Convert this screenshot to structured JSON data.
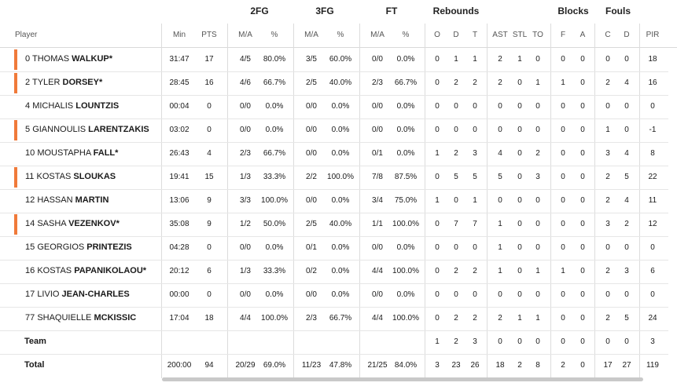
{
  "groups": {
    "fg2": "2FG",
    "fg3": "3FG",
    "ft": "FT",
    "rebounds": "Rebounds",
    "blocks": "Blocks",
    "fouls": "Fouls"
  },
  "columns": {
    "player": "Player",
    "min": "Min",
    "pts": "PTS",
    "fg2_ma": "M/A",
    "fg2_pct": "%",
    "fg3_ma": "M/A",
    "fg3_pct": "%",
    "ft_ma": "M/A",
    "ft_pct": "%",
    "reb_o": "O",
    "reb_d": "D",
    "reb_t": "T",
    "ast": "AST",
    "stl": "STL",
    "to": "TO",
    "blk_f": "F",
    "blk_a": "A",
    "foul_c": "C",
    "foul_d": "D",
    "pir": "PIR"
  },
  "players": [
    {
      "starter": true,
      "num": "0",
      "first": "THOMAS",
      "last": "WALKUP*",
      "min": "31:47",
      "pts": "17",
      "fg2_ma": "4/5",
      "fg2_pct": "80.0%",
      "fg3_ma": "3/5",
      "fg3_pct": "60.0%",
      "ft_ma": "0/0",
      "ft_pct": "0.0%",
      "o": "0",
      "d": "1",
      "t": "1",
      "ast": "2",
      "stl": "1",
      "to": "0",
      "bf": "0",
      "ba": "0",
      "fc": "0",
      "fd": "0",
      "pir": "18"
    },
    {
      "starter": true,
      "num": "2",
      "first": "TYLER",
      "last": "DORSEY*",
      "min": "28:45",
      "pts": "16",
      "fg2_ma": "4/6",
      "fg2_pct": "66.7%",
      "fg3_ma": "2/5",
      "fg3_pct": "40.0%",
      "ft_ma": "2/3",
      "ft_pct": "66.7%",
      "o": "0",
      "d": "2",
      "t": "2",
      "ast": "2",
      "stl": "0",
      "to": "1",
      "bf": "1",
      "ba": "0",
      "fc": "2",
      "fd": "4",
      "pir": "16"
    },
    {
      "starter": false,
      "num": "4",
      "first": "MICHALIS",
      "last": "LOUNTZIS",
      "min": "00:04",
      "pts": "0",
      "fg2_ma": "0/0",
      "fg2_pct": "0.0%",
      "fg3_ma": "0/0",
      "fg3_pct": "0.0%",
      "ft_ma": "0/0",
      "ft_pct": "0.0%",
      "o": "0",
      "d": "0",
      "t": "0",
      "ast": "0",
      "stl": "0",
      "to": "0",
      "bf": "0",
      "ba": "0",
      "fc": "0",
      "fd": "0",
      "pir": "0"
    },
    {
      "starter": true,
      "num": "5",
      "first": "GIANNOULIS",
      "last": "LARENTZAKIS",
      "min": "03:02",
      "pts": "0",
      "fg2_ma": "0/0",
      "fg2_pct": "0.0%",
      "fg3_ma": "0/0",
      "fg3_pct": "0.0%",
      "ft_ma": "0/0",
      "ft_pct": "0.0%",
      "o": "0",
      "d": "0",
      "t": "0",
      "ast": "0",
      "stl": "0",
      "to": "0",
      "bf": "0",
      "ba": "0",
      "fc": "1",
      "fd": "0",
      "pir": "-1"
    },
    {
      "starter": false,
      "num": "10",
      "first": "MOUSTAPHA",
      "last": "FALL*",
      "min": "26:43",
      "pts": "4",
      "fg2_ma": "2/3",
      "fg2_pct": "66.7%",
      "fg3_ma": "0/0",
      "fg3_pct": "0.0%",
      "ft_ma": "0/1",
      "ft_pct": "0.0%",
      "o": "1",
      "d": "2",
      "t": "3",
      "ast": "4",
      "stl": "0",
      "to": "2",
      "bf": "0",
      "ba": "0",
      "fc": "3",
      "fd": "4",
      "pir": "8"
    },
    {
      "starter": true,
      "num": "11",
      "first": "KOSTAS",
      "last": "SLOUKAS",
      "min": "19:41",
      "pts": "15",
      "fg2_ma": "1/3",
      "fg2_pct": "33.3%",
      "fg3_ma": "2/2",
      "fg3_pct": "100.0%",
      "ft_ma": "7/8",
      "ft_pct": "87.5%",
      "o": "0",
      "d": "5",
      "t": "5",
      "ast": "5",
      "stl": "0",
      "to": "3",
      "bf": "0",
      "ba": "0",
      "fc": "2",
      "fd": "5",
      "pir": "22"
    },
    {
      "starter": false,
      "num": "12",
      "first": "HASSAN",
      "last": "MARTIN",
      "min": "13:06",
      "pts": "9",
      "fg2_ma": "3/3",
      "fg2_pct": "100.0%",
      "fg3_ma": "0/0",
      "fg3_pct": "0.0%",
      "ft_ma": "3/4",
      "ft_pct": "75.0%",
      "o": "1",
      "d": "0",
      "t": "1",
      "ast": "0",
      "stl": "0",
      "to": "0",
      "bf": "0",
      "ba": "0",
      "fc": "2",
      "fd": "4",
      "pir": "11"
    },
    {
      "starter": true,
      "num": "14",
      "first": "SASHA",
      "last": "VEZENKOV*",
      "min": "35:08",
      "pts": "9",
      "fg2_ma": "1/2",
      "fg2_pct": "50.0%",
      "fg3_ma": "2/5",
      "fg3_pct": "40.0%",
      "ft_ma": "1/1",
      "ft_pct": "100.0%",
      "o": "0",
      "d": "7",
      "t": "7",
      "ast": "1",
      "stl": "0",
      "to": "0",
      "bf": "0",
      "ba": "0",
      "fc": "3",
      "fd": "2",
      "pir": "12"
    },
    {
      "starter": false,
      "num": "15",
      "first": "GEORGIOS",
      "last": "PRINTEZIS",
      "min": "04:28",
      "pts": "0",
      "fg2_ma": "0/0",
      "fg2_pct": "0.0%",
      "fg3_ma": "0/1",
      "fg3_pct": "0.0%",
      "ft_ma": "0/0",
      "ft_pct": "0.0%",
      "o": "0",
      "d": "0",
      "t": "0",
      "ast": "1",
      "stl": "0",
      "to": "0",
      "bf": "0",
      "ba": "0",
      "fc": "0",
      "fd": "0",
      "pir": "0"
    },
    {
      "starter": false,
      "num": "16",
      "first": "KOSTAS",
      "last": "PAPANIKOLAOU*",
      "min": "20:12",
      "pts": "6",
      "fg2_ma": "1/3",
      "fg2_pct": "33.3%",
      "fg3_ma": "0/2",
      "fg3_pct": "0.0%",
      "ft_ma": "4/4",
      "ft_pct": "100.0%",
      "o": "0",
      "d": "2",
      "t": "2",
      "ast": "1",
      "stl": "0",
      "to": "1",
      "bf": "1",
      "ba": "0",
      "fc": "2",
      "fd": "3",
      "pir": "6"
    },
    {
      "starter": false,
      "num": "17",
      "first": "LIVIO",
      "last": "JEAN-CHARLES",
      "min": "00:00",
      "pts": "0",
      "fg2_ma": "0/0",
      "fg2_pct": "0.0%",
      "fg3_ma": "0/0",
      "fg3_pct": "0.0%",
      "ft_ma": "0/0",
      "ft_pct": "0.0%",
      "o": "0",
      "d": "0",
      "t": "0",
      "ast": "0",
      "stl": "0",
      "to": "0",
      "bf": "0",
      "ba": "0",
      "fc": "0",
      "fd": "0",
      "pir": "0"
    },
    {
      "starter": false,
      "num": "77",
      "first": "SHAQUIELLE",
      "last": "MCKISSIC",
      "min": "17:04",
      "pts": "18",
      "fg2_ma": "4/4",
      "fg2_pct": "100.0%",
      "fg3_ma": "2/3",
      "fg3_pct": "66.7%",
      "ft_ma": "4/4",
      "ft_pct": "100.0%",
      "o": "0",
      "d": "2",
      "t": "2",
      "ast": "2",
      "stl": "1",
      "to": "1",
      "bf": "0",
      "ba": "0",
      "fc": "2",
      "fd": "5",
      "pir": "24"
    }
  ],
  "team": {
    "label": "Team",
    "o": "1",
    "d": "2",
    "t": "3",
    "ast": "0",
    "stl": "0",
    "to": "0",
    "bf": "0",
    "ba": "0",
    "fc": "0",
    "fd": "0",
    "pir": "3"
  },
  "total": {
    "label": "Total",
    "min": "200:00",
    "pts": "94",
    "fg2_ma": "20/29",
    "fg2_pct": "69.0%",
    "fg3_ma": "11/23",
    "fg3_pct": "47.8%",
    "ft_ma": "21/25",
    "ft_pct": "84.0%",
    "o": "3",
    "d": "23",
    "t": "26",
    "ast": "18",
    "stl": "2",
    "to": "8",
    "bf": "2",
    "ba": "0",
    "fc": "17",
    "fd": "27",
    "pir": "119"
  },
  "colors": {
    "starter_bar": "#f07a3a",
    "divider": "#dcdcdc",
    "scrollbar": "#c9c9c9"
  }
}
